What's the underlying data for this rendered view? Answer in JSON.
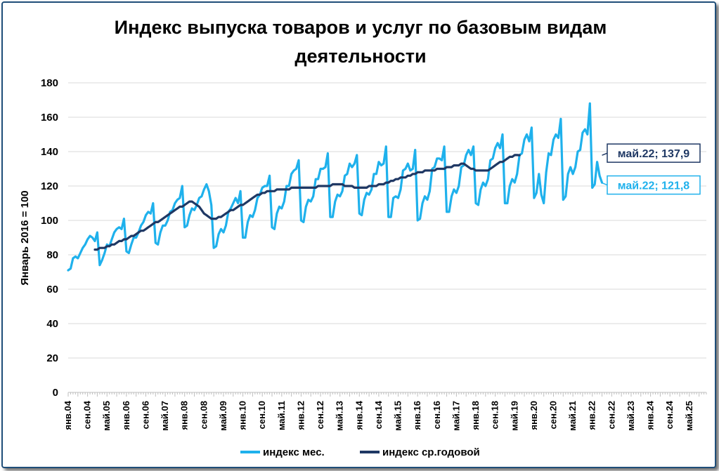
{
  "chart_data": {
    "type": "line",
    "title_line1": "Индекс выпуска товаров и услуг по базовым видам",
    "title_line2": "деятельности",
    "ylabel": "Январь 2016 = 100",
    "xlabel": "",
    "ylim": [
      0,
      180
    ],
    "yticks": [
      "0",
      "20",
      "40",
      "60",
      "80",
      "100",
      "120",
      "140",
      "160",
      "180"
    ],
    "x_start": "янв.04",
    "x_end": "дек.25",
    "x_tick_step_months": 4,
    "x_tick_labels": [
      "янв.04",
      "сен.04",
      "май.05",
      "янв.06",
      "сен.06",
      "май.07",
      "янв.08",
      "сен.08",
      "май.09",
      "янв.10",
      "сен.10",
      "май.11",
      "янв.12",
      "сен.12",
      "май.13",
      "янв.14",
      "сен.14",
      "май.15",
      "янв.16",
      "сен.16",
      "май.17",
      "янв.18",
      "сен.18",
      "май.19",
      "янв.20",
      "сен.20",
      "май.21",
      "янв.22",
      "сен.22",
      "май.23",
      "янв.24",
      "сен.24",
      "май.25"
    ],
    "grid": true,
    "legend_position": "bottom",
    "colors": {
      "monthly": "#1fb1ec",
      "annual": "#1f3864",
      "grid": "#d9d9d9",
      "frame": "#1f4e79"
    },
    "series": [
      {
        "name": "индекс мес.",
        "start": "янв.04",
        "values": [
          71,
          72,
          78,
          79,
          78,
          81,
          84,
          86,
          89,
          91,
          90,
          88,
          93,
          74,
          77,
          81,
          86,
          85,
          89,
          93,
          95,
          96,
          95,
          101,
          82,
          81,
          86,
          90,
          90,
          93,
          97,
          99,
          103,
          105,
          104,
          110,
          87,
          86,
          93,
          97,
          97,
          100,
          105,
          106,
          110,
          112,
          113,
          120,
          96,
          97,
          103,
          107,
          106,
          109,
          113,
          114,
          118,
          121,
          117,
          109,
          84,
          85,
          92,
          95,
          93,
          97,
          105,
          107,
          110,
          113,
          110,
          117,
          90,
          90,
          99,
          103,
          102,
          106,
          113,
          115,
          119,
          120,
          120,
          126,
          96,
          95,
          104,
          108,
          107,
          111,
          120,
          120,
          127,
          129,
          130,
          135,
          100,
          99,
          108,
          112,
          111,
          114,
          124,
          124,
          130,
          130,
          131,
          139,
          102,
          102,
          111,
          115,
          114,
          117,
          126,
          127,
          133,
          131,
          133,
          138,
          104,
          103,
          112,
          116,
          115,
          118,
          127,
          127,
          134,
          132,
          133,
          143,
          102,
          102,
          113,
          114,
          113,
          118,
          129,
          130,
          133,
          129,
          130,
          141,
          100,
          101,
          110,
          114,
          112,
          117,
          130,
          131,
          136,
          136,
          135,
          143,
          105,
          105,
          114,
          118,
          116,
          120,
          131,
          132,
          138,
          141,
          138,
          143,
          110,
          109,
          118,
          122,
          120,
          124,
          135,
          136,
          142,
          145,
          142,
          150,
          110,
          110,
          120,
          124,
          122,
          127,
          138,
          139,
          147,
          150,
          146,
          154,
          113,
          116,
          127,
          115,
          110,
          128,
          139,
          138,
          147,
          150,
          148,
          159,
          112,
          114,
          127,
          131,
          127,
          131,
          140,
          141,
          151,
          153,
          150,
          168,
          119,
          121,
          134,
          126,
          122
        ]
      },
      {
        "name": "индекс ср.годовой",
        "start": "дек.04",
        "values": [
          83,
          83,
          84,
          84,
          84,
          85,
          85,
          86,
          86,
          87,
          88,
          88,
          89,
          89,
          90,
          91,
          91,
          92,
          93,
          94,
          94,
          95,
          96,
          97,
          98,
          99,
          99,
          100,
          101,
          102,
          103,
          104,
          105,
          106,
          107,
          108,
          108,
          109,
          110,
          111,
          111,
          110,
          109,
          108,
          106,
          104,
          103,
          102,
          101,
          101,
          101,
          102,
          102,
          103,
          104,
          105,
          106,
          106,
          107,
          108,
          109,
          109,
          110,
          111,
          112,
          113,
          114,
          115,
          115,
          116,
          116,
          117,
          117,
          117,
          117,
          118,
          118,
          118,
          118,
          118,
          118,
          119,
          119,
          119,
          119,
          119,
          119,
          119,
          119,
          119,
          119,
          119,
          120,
          120,
          120,
          120,
          120,
          120,
          121,
          121,
          121,
          121,
          121,
          120,
          120,
          120,
          120,
          119,
          119,
          119,
          119,
          119,
          119,
          120,
          120,
          120,
          120,
          121,
          121,
          121,
          122,
          122,
          123,
          123,
          124,
          124,
          125,
          125,
          125,
          126,
          126,
          127,
          127,
          128,
          128,
          128,
          129,
          129,
          129,
          129,
          129,
          130,
          130,
          130,
          130,
          131,
          131,
          131,
          132,
          132,
          132,
          133,
          133,
          132,
          131,
          130,
          130,
          129,
          129,
          129,
          129,
          129,
          129,
          130,
          131,
          132,
          133,
          134,
          134,
          135,
          136,
          137,
          137,
          138,
          138,
          137.9
        ]
      }
    ],
    "annotations": [
      {
        "text": "май.22; 137,9",
        "series": "индекс ср.годовой",
        "x": "май.22",
        "y": 137.9
      },
      {
        "text": "май.22; 121,8",
        "series": "индекс мес.",
        "x": "май.22",
        "y": 121.8
      }
    ]
  }
}
